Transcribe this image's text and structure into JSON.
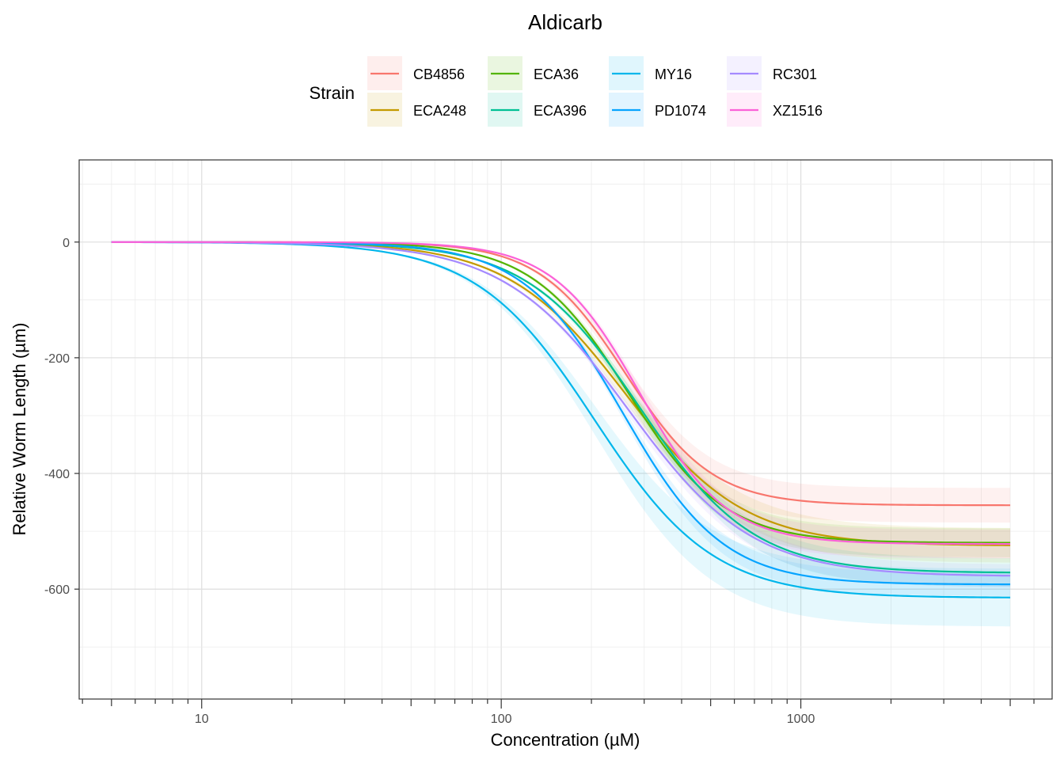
{
  "chart_data": {
    "type": "line",
    "title": "Aldicarb",
    "xlabel": "Concentration (µM)",
    "ylabel": "Relative Worm Length (µm)",
    "x_scale": "log10",
    "xlim": [
      3.9,
      6900
    ],
    "ylim": [
      -790,
      142
    ],
    "x_ticks": [
      {
        "value": 10,
        "label": "10"
      },
      {
        "value": 100,
        "label": "100"
      },
      {
        "value": 1000,
        "label": "1000"
      }
    ],
    "y_ticks": [
      {
        "value": 0,
        "label": "0"
      },
      {
        "value": -200,
        "label": "-200"
      },
      {
        "value": -400,
        "label": "-400"
      },
      {
        "value": -600,
        "label": "-600"
      }
    ],
    "grid": true,
    "legend": {
      "title": "Strain",
      "position": "top"
    },
    "x_range": [
      5,
      5000
    ],
    "series": [
      {
        "name": "CB4856",
        "color": "#F8766D",
        "bottom": -455,
        "ec50": 260,
        "slope": 3.0,
        "ci": 30
      },
      {
        "name": "ECA248",
        "color": "#C49A00",
        "bottom": -525,
        "ec50": 260,
        "slope": 2.2,
        "ci": 30
      },
      {
        "name": "ECA36",
        "color": "#53B400",
        "bottom": -520,
        "ec50": 265,
        "slope": 2.7,
        "ci": 25
      },
      {
        "name": "ECA396",
        "color": "#00C094",
        "bottom": -572,
        "ec50": 290,
        "slope": 2.3,
        "ci": 25
      },
      {
        "name": "MY16",
        "color": "#00B6EB",
        "bottom": -615,
        "ec50": 205,
        "slope": 2.2,
        "ci": 50
      },
      {
        "name": "PD1074",
        "color": "#06A4FF",
        "bottom": -592,
        "ec50": 255,
        "slope": 2.6,
        "ci": 20
      },
      {
        "name": "RC301",
        "color": "#A58AFF",
        "bottom": -578,
        "ec50": 265,
        "slope": 2.1,
        "ci": 20
      },
      {
        "name": "XZ1516",
        "color": "#FB61D7",
        "bottom": -522,
        "ec50": 290,
        "slope": 3.0,
        "ci": 25
      }
    ]
  }
}
